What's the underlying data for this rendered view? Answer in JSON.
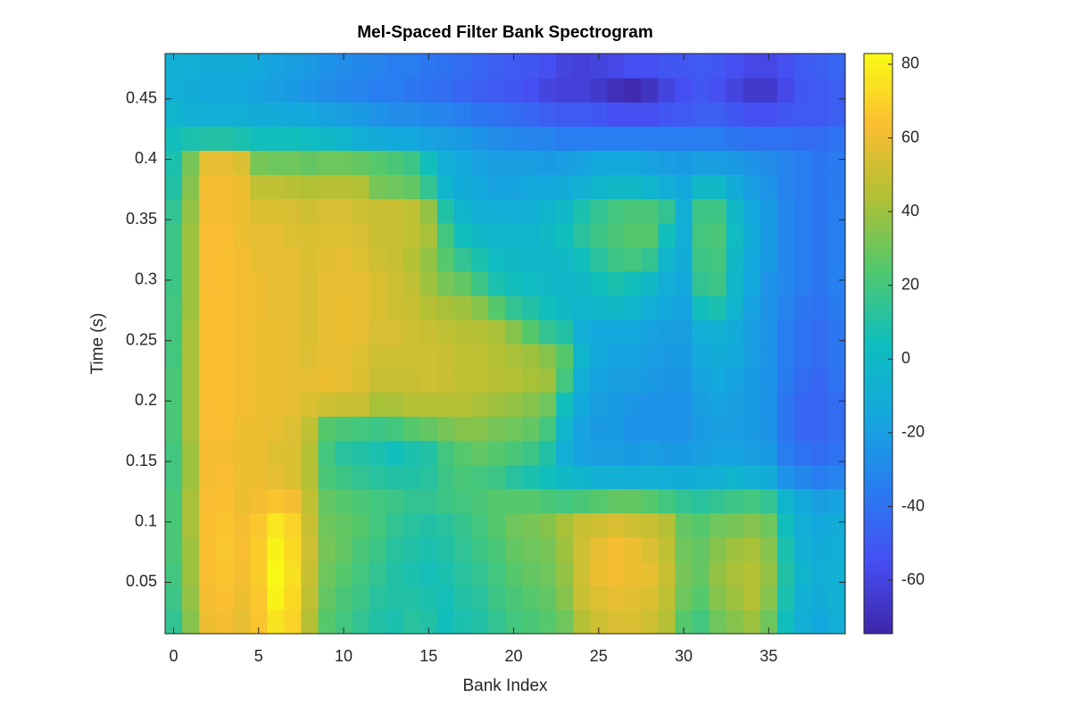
{
  "chart_data": {
    "type": "heatmap",
    "title": "Mel-Spaced Filter Bank Spectrogram",
    "xlabel": "Bank Index",
    "ylabel": "Time (s)",
    "colormap": "parula",
    "x": [
      0,
      1,
      2,
      3,
      4,
      5,
      6,
      7,
      8,
      9,
      10,
      11,
      12,
      13,
      14,
      15,
      16,
      17,
      18,
      19,
      20,
      21,
      22,
      23,
      24,
      25,
      26,
      27,
      28,
      29,
      30,
      31,
      32,
      33,
      34,
      35,
      36,
      37,
      38,
      39
    ],
    "y": [
      0.0175,
      0.0375,
      0.0575,
      0.0775,
      0.0975,
      0.1175,
      0.1375,
      0.1575,
      0.1775,
      0.1975,
      0.2175,
      0.2375,
      0.2575,
      0.2775,
      0.2975,
      0.3175,
      0.3375,
      0.3575,
      0.3775,
      0.3975,
      0.4175,
      0.4375,
      0.4575,
      0.4775
    ],
    "xlim": [
      -0.5,
      39.5
    ],
    "xticks": [
      0,
      5,
      10,
      15,
      20,
      25,
      30,
      35
    ],
    "ylim": [
      0.0075,
      0.4875
    ],
    "yticks": [
      0.05,
      0.1,
      0.15,
      0.2,
      0.25,
      0.3,
      0.35,
      0.4,
      0.45
    ],
    "clim": [
      -74.5,
      82.9
    ],
    "cticks": [
      -60,
      -40,
      -20,
      0,
      20,
      40,
      60,
      80
    ],
    "z": [
      [
        15,
        35,
        60,
        62,
        58,
        65,
        75,
        70,
        45,
        25,
        20,
        15,
        10,
        8,
        12,
        10,
        5,
        8,
        10,
        15,
        20,
        22,
        25,
        30,
        45,
        52,
        55,
        55,
        52,
        45,
        25,
        20,
        30,
        35,
        40,
        30,
        5,
        -10,
        -15,
        -10
      ],
      [
        18,
        38,
        62,
        64,
        60,
        66,
        80,
        72,
        48,
        28,
        22,
        18,
        12,
        10,
        10,
        8,
        6,
        10,
        12,
        18,
        22,
        25,
        28,
        35,
        50,
        56,
        58,
        57,
        55,
        48,
        30,
        25,
        35,
        40,
        45,
        35,
        8,
        -8,
        -12,
        -8
      ],
      [
        20,
        40,
        63,
        65,
        62,
        68,
        82,
        74,
        50,
        30,
        25,
        20,
        15,
        10,
        8,
        6,
        8,
        12,
        15,
        20,
        25,
        28,
        30,
        38,
        52,
        60,
        62,
        60,
        58,
        50,
        32,
        28,
        38,
        42,
        45,
        38,
        10,
        -5,
        -10,
        -8
      ],
      [
        22,
        40,
        64,
        66,
        63,
        68,
        80,
        72,
        52,
        32,
        28,
        22,
        18,
        12,
        10,
        8,
        10,
        14,
        18,
        22,
        28,
        30,
        32,
        40,
        52,
        58,
        62,
        60,
        55,
        48,
        30,
        28,
        35,
        40,
        42,
        35,
        8,
        -8,
        -12,
        -10
      ],
      [
        22,
        42,
        64,
        65,
        62,
        66,
        76,
        70,
        50,
        30,
        28,
        25,
        20,
        15,
        12,
        10,
        12,
        16,
        20,
        25,
        30,
        32,
        35,
        42,
        50,
        52,
        55,
        52,
        50,
        45,
        28,
        25,
        30,
        32,
        35,
        30,
        5,
        -10,
        -15,
        -12
      ],
      [
        22,
        42,
        63,
        64,
        60,
        62,
        65,
        62,
        48,
        28,
        25,
        22,
        20,
        18,
        15,
        15,
        18,
        20,
        22,
        25,
        25,
        25,
        22,
        20,
        22,
        25,
        28,
        28,
        25,
        20,
        15,
        12,
        15,
        18,
        20,
        15,
        -5,
        -15,
        -20,
        -18
      ],
      [
        20,
        40,
        62,
        63,
        60,
        60,
        58,
        55,
        45,
        22,
        18,
        15,
        12,
        10,
        10,
        12,
        18,
        22,
        20,
        18,
        12,
        8,
        5,
        0,
        -5,
        -8,
        -8,
        -10,
        -8,
        -10,
        -12,
        -10,
        -8,
        -5,
        -8,
        -12,
        -25,
        -30,
        -35,
        -32
      ],
      [
        20,
        40,
        62,
        62,
        60,
        60,
        56,
        55,
        45,
        20,
        12,
        10,
        8,
        5,
        8,
        10,
        20,
        25,
        28,
        25,
        22,
        18,
        10,
        -10,
        -18,
        -20,
        -20,
        -22,
        -20,
        -22,
        -22,
        -20,
        -18,
        -18,
        -20,
        -22,
        -35,
        -40,
        -42,
        -40
      ],
      [
        22,
        42,
        63,
        63,
        60,
        60,
        58,
        56,
        48,
        25,
        22,
        20,
        18,
        20,
        25,
        28,
        32,
        35,
        35,
        32,
        30,
        28,
        20,
        -5,
        -18,
        -22,
        -22,
        -25,
        -25,
        -25,
        -25,
        -22,
        -20,
        -20,
        -22,
        -25,
        -38,
        -45,
        -45,
        -42
      ],
      [
        22,
        42,
        63,
        64,
        62,
        60,
        60,
        58,
        55,
        52,
        50,
        50,
        42,
        42,
        45,
        45,
        45,
        45,
        42,
        40,
        38,
        35,
        30,
        5,
        -15,
        -20,
        -22,
        -24,
        -25,
        -25,
        -25,
        -20,
        -18,
        -20,
        -22,
        -25,
        -38,
        -45,
        -45,
        -42
      ],
      [
        22,
        42,
        64,
        64,
        62,
        60,
        60,
        58,
        58,
        60,
        58,
        55,
        50,
        50,
        50,
        52,
        50,
        48,
        48,
        46,
        45,
        42,
        40,
        20,
        -10,
        -18,
        -20,
        -20,
        -22,
        -24,
        -24,
        -18,
        -15,
        -18,
        -22,
        -25,
        -36,
        -42,
        -45,
        -40
      ],
      [
        20,
        42,
        64,
        64,
        62,
        60,
        60,
        58,
        56,
        58,
        58,
        56,
        52,
        52,
        52,
        52,
        50,
        48,
        48,
        45,
        42,
        40,
        35,
        25,
        -5,
        -15,
        -18,
        -18,
        -20,
        -22,
        -22,
        -15,
        -12,
        -15,
        -20,
        -25,
        -35,
        -40,
        -42,
        -38
      ],
      [
        20,
        42,
        64,
        64,
        62,
        60,
        60,
        58,
        55,
        58,
        60,
        58,
        54,
        54,
        52,
        50,
        48,
        46,
        45,
        42,
        35,
        25,
        15,
        10,
        -10,
        -15,
        -15,
        -15,
        -18,
        -20,
        -20,
        -10,
        -8,
        -12,
        -20,
        -25,
        -35,
        -40,
        -42,
        -38
      ],
      [
        20,
        40,
        64,
        64,
        62,
        60,
        58,
        58,
        55,
        58,
        60,
        58,
        55,
        52,
        50,
        45,
        42,
        40,
        35,
        25,
        15,
        10,
        5,
        0,
        -5,
        -2,
        0,
        -5,
        -10,
        -15,
        -18,
        5,
        8,
        -5,
        -18,
        -25,
        -32,
        -38,
        -40,
        -36
      ],
      [
        18,
        40,
        63,
        64,
        62,
        60,
        58,
        58,
        55,
        58,
        58,
        58,
        55,
        52,
        48,
        40,
        32,
        28,
        18,
        8,
        5,
        2,
        0,
        -2,
        0,
        5,
        8,
        5,
        0,
        -10,
        -15,
        15,
        18,
        -2,
        -15,
        -25,
        -30,
        -35,
        -38,
        -34
      ],
      [
        18,
        40,
        63,
        64,
        62,
        58,
        58,
        58,
        55,
        57,
        58,
        56,
        52,
        50,
        45,
        38,
        25,
        15,
        8,
        2,
        0,
        -2,
        -2,
        0,
        5,
        12,
        18,
        20,
        15,
        -5,
        -12,
        18,
        20,
        0,
        -15,
        -22,
        -30,
        -35,
        -38,
        -34
      ],
      [
        18,
        40,
        63,
        63,
        60,
        58,
        58,
        56,
        55,
        56,
        56,
        54,
        50,
        50,
        48,
        42,
        20,
        5,
        0,
        -5,
        -5,
        -5,
        0,
        5,
        12,
        18,
        22,
        25,
        25,
        5,
        -10,
        20,
        22,
        2,
        -12,
        -22,
        -30,
        -35,
        -38,
        -34
      ],
      [
        15,
        38,
        62,
        62,
        60,
        55,
        55,
        54,
        52,
        54,
        54,
        52,
        50,
        50,
        48,
        38,
        10,
        -5,
        -8,
        -10,
        -10,
        -8,
        -5,
        0,
        8,
        15,
        20,
        22,
        22,
        15,
        -10,
        18,
        18,
        0,
        -15,
        -22,
        -30,
        -35,
        -38,
        -35
      ],
      [
        10,
        35,
        62,
        62,
        60,
        48,
        48,
        46,
        44,
        46,
        46,
        44,
        32,
        30,
        28,
        15,
        -5,
        -12,
        -15,
        -18,
        -18,
        -15,
        -15,
        -12,
        -8,
        -5,
        0,
        0,
        -5,
        -10,
        -15,
        0,
        0,
        -12,
        -20,
        -25,
        -32,
        -35,
        -38,
        -36
      ],
      [
        8,
        32,
        58,
        58,
        55,
        32,
        30,
        30,
        28,
        30,
        30,
        28,
        25,
        22,
        18,
        5,
        -10,
        -15,
        -18,
        -20,
        -20,
        -20,
        -22,
        -20,
        -18,
        -15,
        -15,
        -15,
        -18,
        -20,
        -22,
        -20,
        -20,
        -22,
        -25,
        -28,
        -32,
        -35,
        -38,
        -36
      ],
      [
        5,
        8,
        10,
        10,
        8,
        5,
        5,
        5,
        2,
        0,
        -5,
        -10,
        -12,
        -15,
        -15,
        -18,
        -20,
        -22,
        -25,
        -28,
        -30,
        -32,
        -32,
        -35,
        -35,
        -35,
        -35,
        -35,
        -35,
        -35,
        -35,
        -35,
        -35,
        -38,
        -40,
        -40,
        -40,
        -42,
        -42,
        -40
      ],
      [
        -5,
        -8,
        -10,
        -10,
        -10,
        -12,
        -12,
        -15,
        -15,
        -18,
        -20,
        -22,
        -25,
        -28,
        -28,
        -30,
        -32,
        -35,
        -38,
        -40,
        -42,
        -45,
        -48,
        -50,
        -50,
        -52,
        -55,
        -55,
        -55,
        -52,
        -50,
        -48,
        -48,
        -52,
        -55,
        -55,
        -52,
        -50,
        -50,
        -48
      ],
      [
        -10,
        -12,
        -15,
        -15,
        -15,
        -18,
        -20,
        -22,
        -25,
        -28,
        -30,
        -32,
        -35,
        -35,
        -38,
        -40,
        -42,
        -45,
        -48,
        -50,
        -52,
        -55,
        -60,
        -62,
        -62,
        -65,
        -70,
        -72,
        -68,
        -60,
        -55,
        -52,
        -55,
        -60,
        -65,
        -65,
        -58,
        -52,
        -50,
        -48
      ],
      [
        -8,
        -10,
        -12,
        -12,
        -12,
        -15,
        -18,
        -20,
        -22,
        -25,
        -28,
        -30,
        -32,
        -35,
        -35,
        -38,
        -40,
        -42,
        -45,
        -48,
        -50,
        -52,
        -55,
        -60,
        -62,
        -60,
        -58,
        -55,
        -55,
        -52,
        -52,
        -50,
        -52,
        -55,
        -58,
        -58,
        -55,
        -50,
        -48,
        -45
      ]
    ]
  }
}
